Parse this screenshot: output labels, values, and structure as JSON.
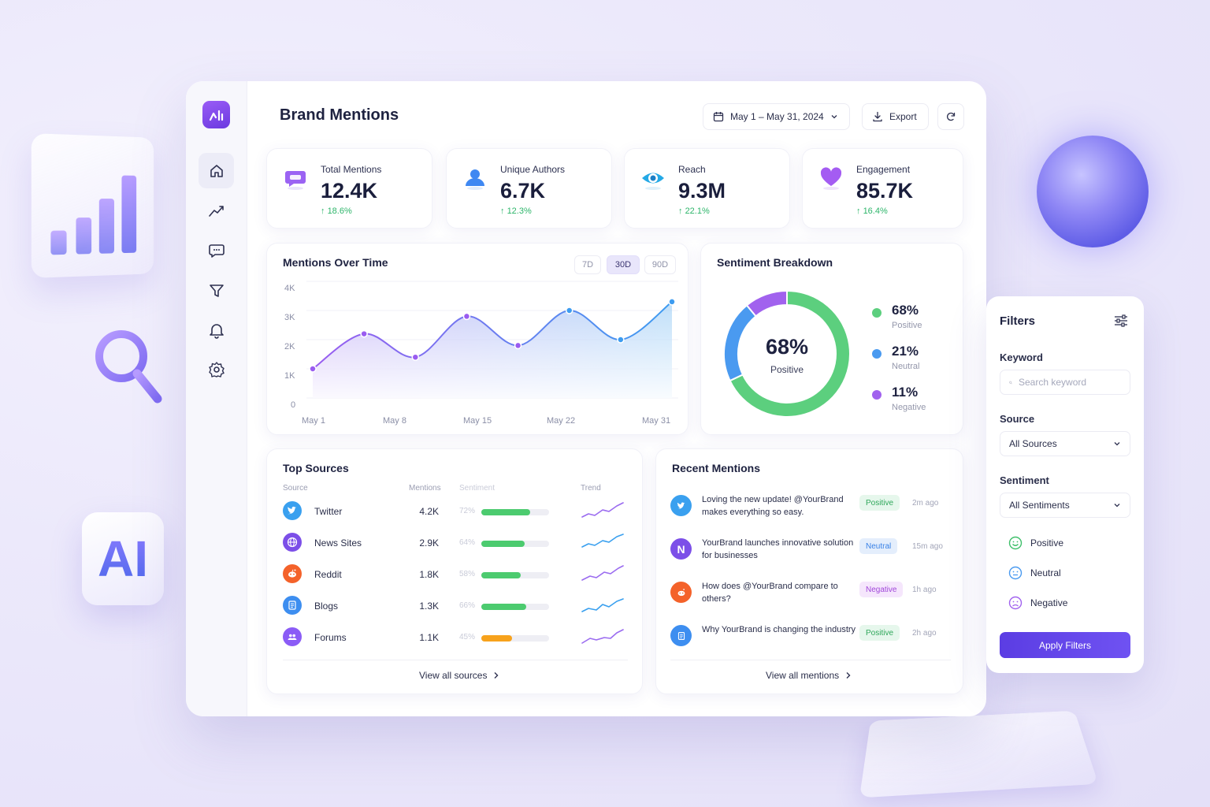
{
  "header": {
    "title": "Brand Mentions",
    "date_range": "May 1 – May 31, 2024",
    "export_label": "Export"
  },
  "kpis": [
    {
      "label": "Total Mentions",
      "value": "12.4K",
      "change": "18.6%",
      "icon": "chat-bubble-icon",
      "color": "#8b5cf6"
    },
    {
      "label": "Unique Authors",
      "value": "6.7K",
      "change": "12.3%",
      "icon": "user-icon",
      "color": "#3b82f6"
    },
    {
      "label": "Reach",
      "value": "9.3M",
      "change": "22.1%",
      "icon": "eye-icon",
      "color": "#22a7e0"
    },
    {
      "label": "Engagement",
      "value": "85.7K",
      "change": "16.4%",
      "icon": "heart-icon",
      "color": "#a855f7"
    }
  ],
  "mentions_chart": {
    "title": "Mentions Over Time",
    "ranges": [
      "7D",
      "30D",
      "90D"
    ],
    "active_range": "30D"
  },
  "sentiment": {
    "title": "Sentiment Breakdown",
    "center_value": "68%",
    "center_label": "Positive",
    "items": [
      {
        "pct": "68%",
        "label": "Positive",
        "color": "#5ccf7e"
      },
      {
        "pct": "21%",
        "label": "Neutral",
        "color": "#4a9af0"
      },
      {
        "pct": "11%",
        "label": "Negative",
        "color": "#a162ee"
      }
    ]
  },
  "chart_data": [
    {
      "type": "area",
      "title": "Mentions Over Time",
      "x_ticks": [
        "May 1",
        "May 8",
        "May 15",
        "May 22",
        "May 31"
      ],
      "y_ticks": [
        "0",
        "1K",
        "2K",
        "3K",
        "4K"
      ],
      "ylim": [
        0,
        4000
      ],
      "series": [
        {
          "values": [
            1000,
            2200,
            1400,
            2800,
            1800,
            3000,
            2000,
            3300
          ]
        }
      ]
    },
    {
      "type": "pie",
      "title": "Sentiment Breakdown",
      "categories": [
        "Positive",
        "Neutral",
        "Negative"
      ],
      "values": [
        68,
        21,
        11
      ]
    }
  ],
  "top_sources": {
    "title": "Top Sources",
    "headers": {
      "source": "Source",
      "mentions": "Mentions",
      "sentiment": "Sentiment",
      "trend": "Trend"
    },
    "rows": [
      {
        "name": "Twitter",
        "count": "4.2K",
        "pct": "72%",
        "fill": 0.72,
        "bar_color": "#4ccb6f",
        "icon": "twitter-icon",
        "icon_color": "#3aa0ef",
        "trend_color": "#9b6cf0"
      },
      {
        "name": "News Sites",
        "count": "2.9K",
        "pct": "64%",
        "fill": 0.64,
        "bar_color": "#4ccb6f",
        "icon": "globe-icon",
        "icon_color": "#7c4fe8",
        "trend_color": "#3aa0ef"
      },
      {
        "name": "Reddit",
        "count": "1.8K",
        "pct": "58%",
        "fill": 0.58,
        "bar_color": "#4ccb6f",
        "icon": "reddit-icon",
        "icon_color": "#f4622a",
        "trend_color": "#9b6cf0"
      },
      {
        "name": "Blogs",
        "count": "1.3K",
        "pct": "66%",
        "fill": 0.66,
        "bar_color": "#4ccb6f",
        "icon": "blog-icon",
        "icon_color": "#3d8ef0",
        "trend_color": "#3aa0ef"
      },
      {
        "name": "Forums",
        "count": "1.1K",
        "pct": "45%",
        "fill": 0.45,
        "bar_color": "#f7a21c",
        "icon": "forum-icon",
        "icon_color": "#8b5cf6",
        "trend_color": "#9b6cf0"
      }
    ],
    "view_all": "View all sources"
  },
  "recent_mentions": {
    "title": "Recent Mentions",
    "items": [
      {
        "text": "Loving the new update! @YourBrand makes everything so easy.",
        "badge": "Positive",
        "time": "2m ago",
        "icon": "twitter-icon",
        "icon_color": "#3aa0ef",
        "glyph": ""
      },
      {
        "text": "YourBrand launches innovative solution for businesses",
        "badge": "Neutral",
        "time": "15m ago",
        "icon": "news-icon",
        "icon_color": "#7c4fe8",
        "glyph": "N"
      },
      {
        "text": "How does @YourBrand compare to others?",
        "badge": "Negative",
        "time": "1h ago",
        "icon": "reddit-icon",
        "icon_color": "#f4622a",
        "glyph": ""
      },
      {
        "text": "Why YourBrand is changing the industry",
        "badge": "Positive",
        "time": "2h ago",
        "icon": "blog-icon",
        "icon_color": "#3d8ef0",
        "glyph": ""
      }
    ],
    "view_all": "View all mentions"
  },
  "filters": {
    "title": "Filters",
    "keyword_label": "Keyword",
    "keyword_placeholder": "Search keyword",
    "source_label": "Source",
    "source_value": "All Sources",
    "sentiment_label": "Sentiment",
    "sentiment_value": "All Sentiments",
    "options": [
      "Positive",
      "Neutral",
      "Negative"
    ],
    "apply_label": "Apply Filters"
  },
  "deco": {
    "ai_text": "AI"
  }
}
